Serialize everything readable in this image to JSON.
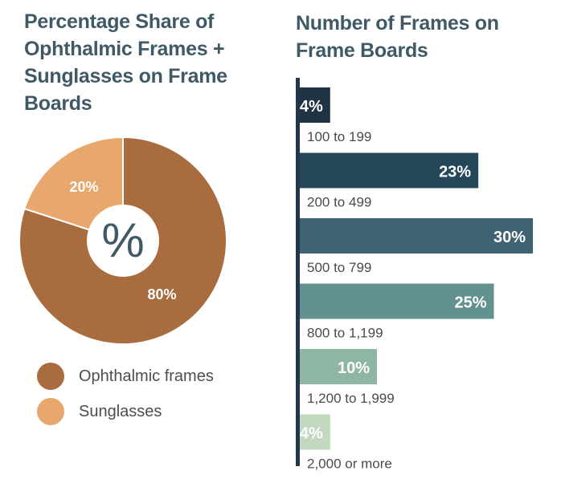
{
  "left_title": "Percentage Share of Ophthalmic Frames + Sunglasses on Frame Boards",
  "right_title": "Number of Frames on Frame Boards",
  "center_symbol": "%",
  "colors": {
    "ophthalmic": "#a86c3f",
    "sunglasses": "#e8a76c",
    "bars": [
      "#1f3344",
      "#24485a",
      "#3e6373",
      "#63918f",
      "#8fb6a3",
      "#c3d9bf"
    ]
  },
  "chart_data": [
    {
      "type": "pie",
      "title": "Percentage Share of Ophthalmic Frames + Sunglasses on Frame Boards",
      "slices": [
        {
          "label": "Ophthalmic frames",
          "value": 80,
          "display": "80%"
        },
        {
          "label": "Sunglasses",
          "value": 20,
          "display": "20%"
        }
      ],
      "legend": "bottom-left"
    },
    {
      "type": "bar",
      "orientation": "horizontal",
      "title": "Number of Frames on Frame Boards",
      "categories": [
        "100 to 199",
        "200 to 499",
        "500 to 799",
        "800 to 1,199",
        "1,200 to 1,999",
        "2,000 or more"
      ],
      "values": [
        4,
        23,
        30,
        25,
        10,
        4
      ],
      "value_labels": [
        "4%",
        "23%",
        "30%",
        "25%",
        "10%",
        "4%"
      ],
      "xlim": [
        0,
        30
      ]
    }
  ]
}
